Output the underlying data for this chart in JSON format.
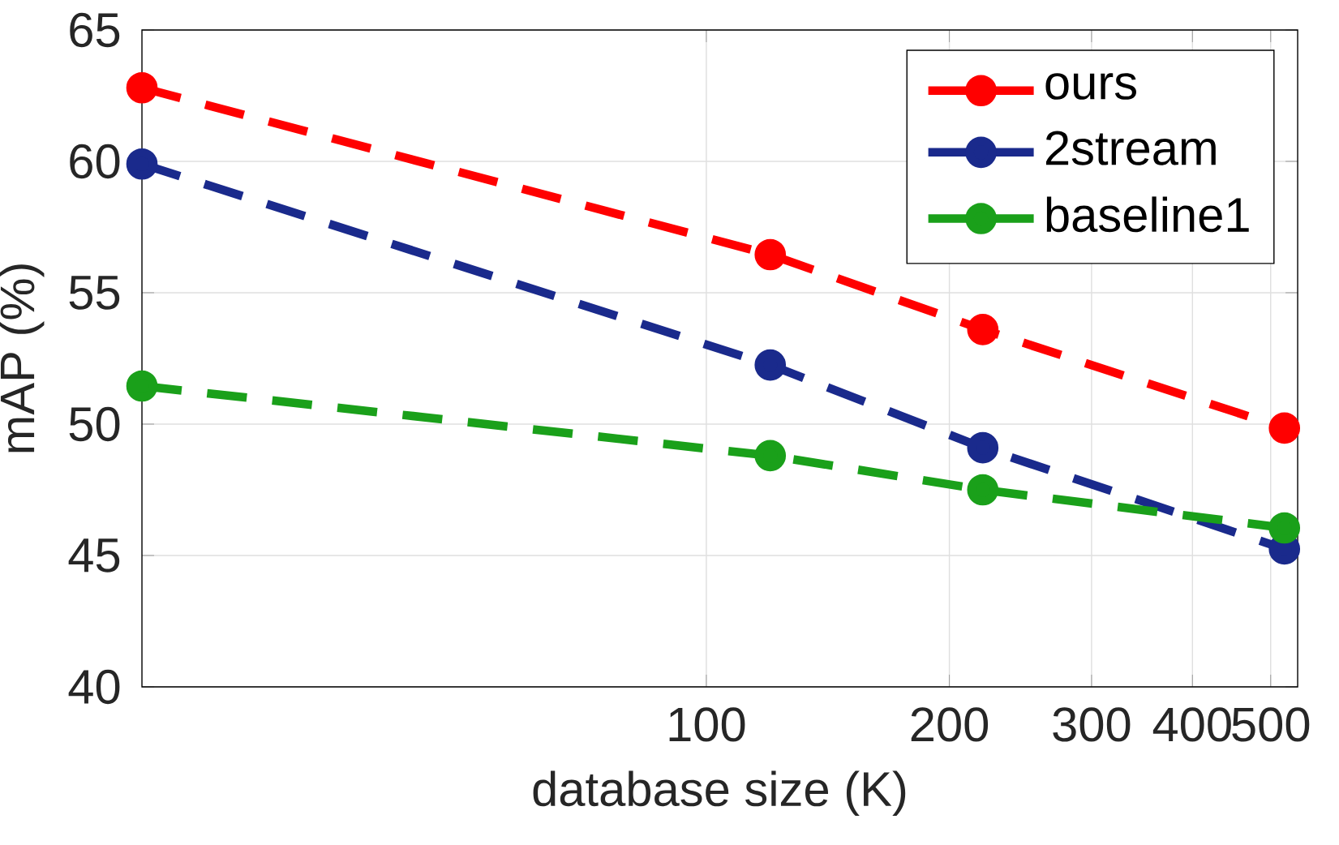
{
  "chart_data": {
    "type": "line",
    "xlabel": "database size (K)",
    "ylabel": "mAP (%)",
    "x": [
      20,
      120,
      220,
      520
    ],
    "series": [
      {
        "name": "ours",
        "color": "#ff0000",
        "values": [
          62.8,
          56.45,
          53.6,
          49.85
        ]
      },
      {
        "name": "2stream",
        "color": "#1a2a8c",
        "values": [
          59.9,
          52.25,
          49.1,
          45.25
        ]
      },
      {
        "name": "baseline1",
        "color": "#1aa01a",
        "values": [
          51.45,
          48.8,
          47.5,
          46.05
        ]
      }
    ],
    "xlim": [
      20,
      540
    ],
    "xticks": [
      100,
      200,
      300,
      400,
      500
    ],
    "ylim": [
      40,
      65
    ],
    "yticks": [
      40,
      45,
      50,
      55,
      60,
      65
    ],
    "log": "x",
    "grid": true,
    "legend": "top right",
    "marker": "circle",
    "line_style": "dashed"
  }
}
